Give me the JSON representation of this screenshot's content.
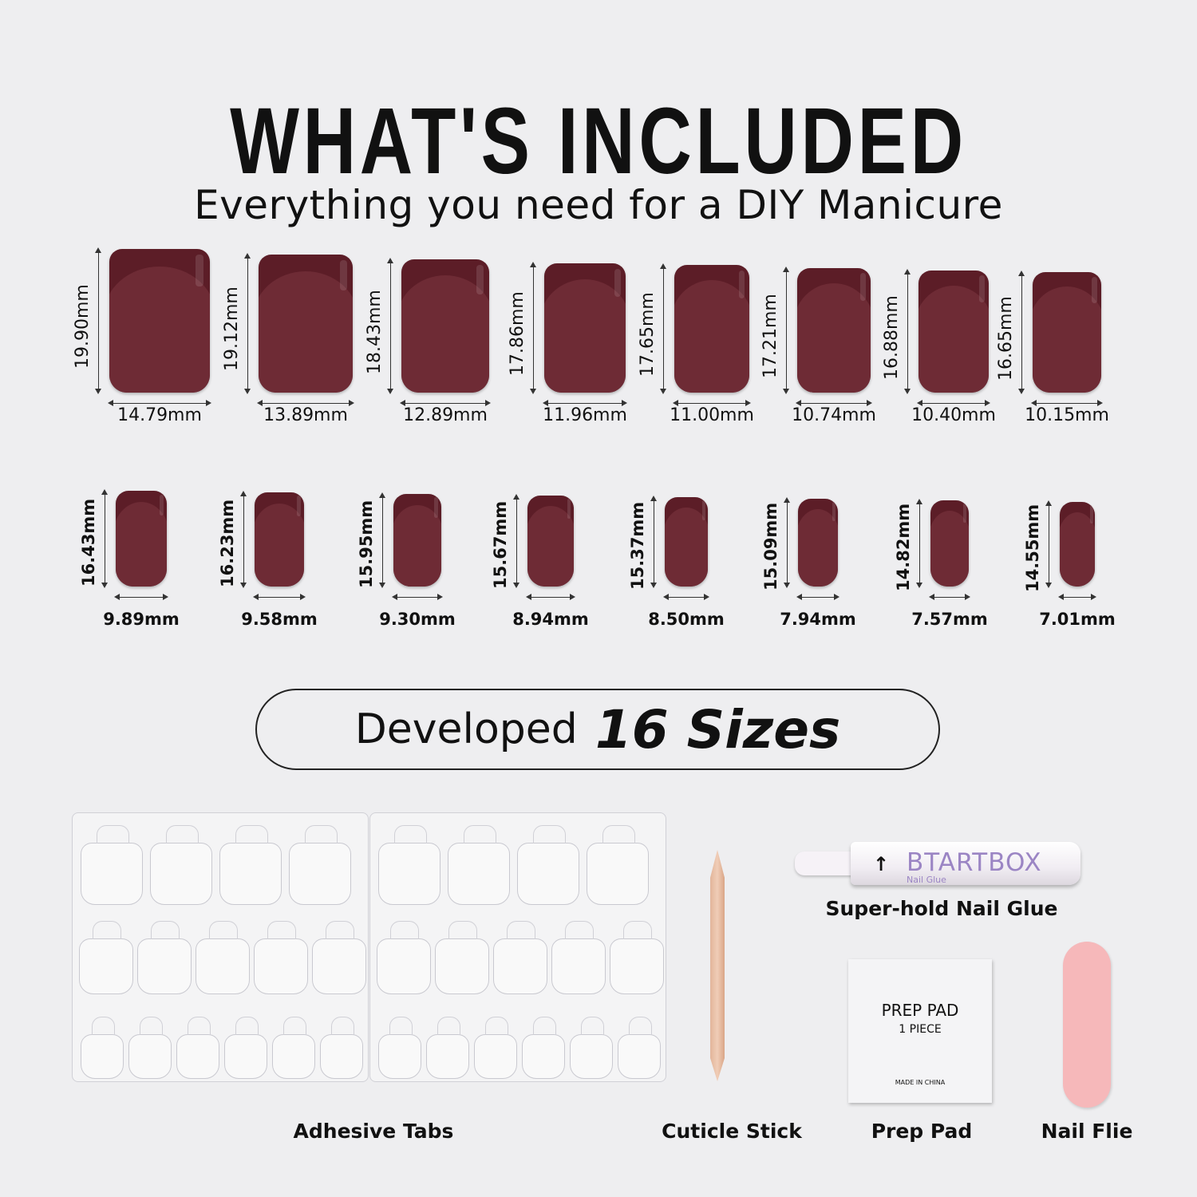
{
  "header": {
    "title": "WHAT'S INCLUDED",
    "subtitle": "Everything you need for a DIY Manicure"
  },
  "colors": {
    "nail": "#6e2b35",
    "nail_tip": "#5c1d27",
    "background": "#eeeef0",
    "nail_file": "#f6b8ba",
    "glue_brand": "#9b85c4"
  },
  "nail_rows": [
    [
      {
        "height": "19.90mm",
        "width": "14.79mm",
        "h": 19.9,
        "w": 14.79
      },
      {
        "height": "19.12mm",
        "width": "13.89mm",
        "h": 19.12,
        "w": 13.89
      },
      {
        "height": "18.43mm",
        "width": "12.89mm",
        "h": 18.43,
        "w": 12.89
      },
      {
        "height": "17.86mm",
        "width": "11.96mm",
        "h": 17.86,
        "w": 11.96
      },
      {
        "height": "17.65mm",
        "width": "11.00mm",
        "h": 17.65,
        "w": 11.0
      },
      {
        "height": "17.21mm",
        "width": "10.74mm",
        "h": 17.21,
        "w": 10.74
      },
      {
        "height": "16.88mm",
        "width": "10.40mm",
        "h": 16.88,
        "w": 10.4
      },
      {
        "height": "16.65mm",
        "width": "10.15mm",
        "h": 16.65,
        "w": 10.15
      }
    ],
    [
      {
        "height": "16.43mm",
        "width": "9.89mm",
        "h": 16.43,
        "w": 9.89
      },
      {
        "height": "16.23mm",
        "width": "9.58mm",
        "h": 16.23,
        "w": 9.58
      },
      {
        "height": "15.95mm",
        "width": "9.30mm",
        "h": 15.95,
        "w": 9.3
      },
      {
        "height": "15.67mm",
        "width": "8.94mm",
        "h": 15.67,
        "w": 8.94
      },
      {
        "height": "15.37mm",
        "width": "8.50mm",
        "h": 15.37,
        "w": 8.5
      },
      {
        "height": "15.09mm",
        "width": "7.94mm",
        "h": 15.09,
        "w": 7.94
      },
      {
        "height": "14.82mm",
        "width": "7.57mm",
        "h": 14.82,
        "w": 7.57
      },
      {
        "height": "14.55mm",
        "width": "7.01mm",
        "h": 14.55,
        "w": 7.01
      }
    ]
  ],
  "sizes_badge": {
    "prefix": "Developed",
    "emphasis": "16 Sizes"
  },
  "items": {
    "adhesive_tabs": "Adhesive Tabs",
    "cuticle_stick": "Cuticle Stick",
    "nail_glue": "Super-hold Nail Glue",
    "prep_pad": "Prep Pad",
    "nail_file": "Nail Flie"
  },
  "glue_label": {
    "brand": "BTARTBOX",
    "sub": "Nail Glue"
  },
  "prep_pad_label": {
    "line1": "PREP PAD",
    "line2": "1 PIECE",
    "line3": "MADE IN CHINA"
  }
}
